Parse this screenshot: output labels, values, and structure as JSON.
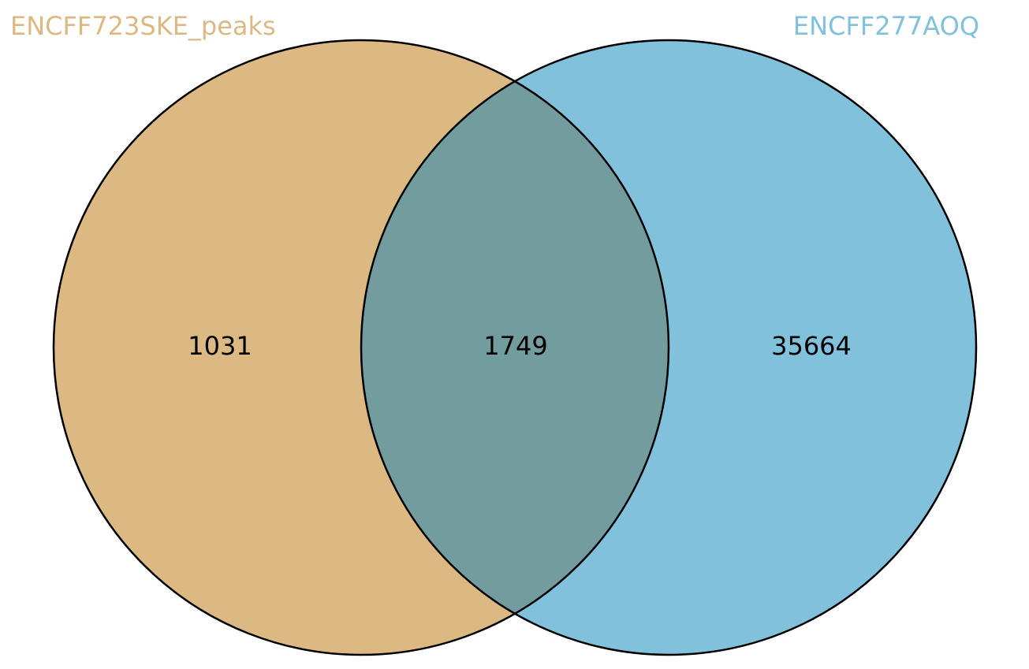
{
  "sets": [
    {
      "name": "ENCFF723SKE_peaks",
      "color": "#dcb882"
    },
    {
      "name": "ENCFF277AOQ",
      "color": "#82c1dc"
    }
  ],
  "regions": {
    "left_only": "1031",
    "intersection": "1749",
    "right_only": "35664"
  },
  "colors": {
    "left_fill": "#dcb882",
    "right_fill": "#82c1dc",
    "overlap_fill": "#729c9e",
    "outline": "#000000"
  }
}
